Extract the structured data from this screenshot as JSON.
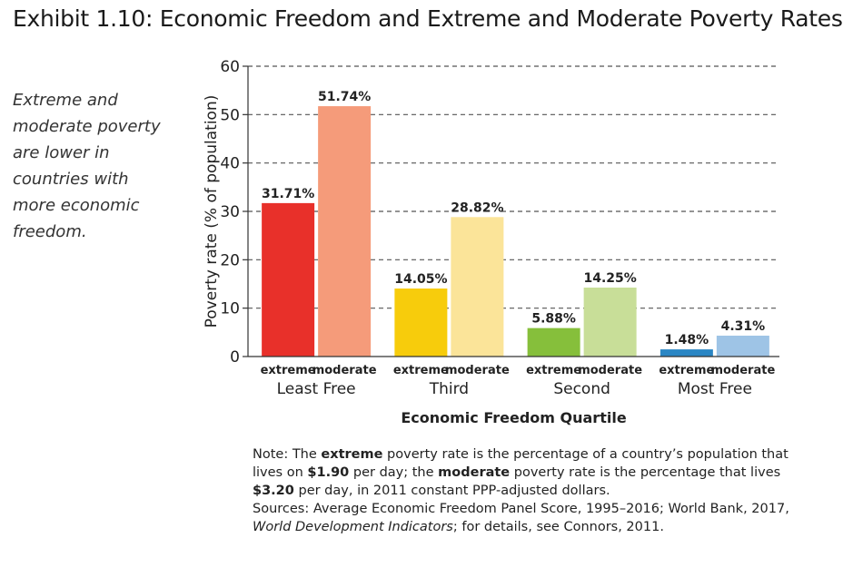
{
  "title": "Exhibit 1.10: Economic Freedom and Extreme and Moderate Poverty Rates",
  "side_note": "Extreme and moderate poverty are lower in countries with more economic freedom.",
  "note": {
    "p1": "Note: The ",
    "b1": "extreme",
    "p2": " poverty rate is the percentage of a country’s population that lives on ",
    "b2": "$1.90",
    "p3": " per day; the ",
    "b3": "moderate",
    "p4": " poverty rate is the percentage that lives ",
    "b4": "$3.20",
    "p5": " per day, in 2011 constant PPP-adjusted dollars.",
    "sources": "Sources: Average Economic Freedom Panel Score, 1995–2016; World Bank, 2017,",
    "sources_italic": "World Development Indicators",
    "sources_end": "; for details, see Connors, 2011."
  },
  "chart_data": {
    "type": "bar",
    "xlabel": "Economic Freedom Quartile",
    "ylabel": "Poverty rate (% of population)",
    "ylim": [
      0,
      60
    ],
    "yticks": [
      0,
      10,
      20,
      30,
      40,
      50,
      60
    ],
    "grid": "dashed horizontal",
    "categories": [
      "Least Free",
      "Third",
      "Second",
      "Most Free"
    ],
    "sub_labels": [
      "extreme",
      "moderate"
    ],
    "groups": [
      {
        "category": "Least Free",
        "extreme": 31.71,
        "moderate": 51.74,
        "extreme_label": "31.71%",
        "moderate_label": "51.74%",
        "extreme_color": "#e8302a",
        "moderate_color": "#f59b7a"
      },
      {
        "category": "Third",
        "extreme": 14.05,
        "moderate": 28.82,
        "extreme_label": "14.05%",
        "moderate_label": "28.82%",
        "extreme_color": "#f7cc0c",
        "moderate_color": "#fbe499"
      },
      {
        "category": "Second",
        "extreme": 5.88,
        "moderate": 14.25,
        "extreme_label": "5.88%",
        "moderate_label": "14.25%",
        "extreme_color": "#86bf3b",
        "moderate_color": "#c8de98"
      },
      {
        "category": "Most Free",
        "extreme": 1.48,
        "moderate": 4.31,
        "extreme_label": "1.48%",
        "moderate_label": "4.31%",
        "extreme_color": "#2a86c4",
        "moderate_color": "#9ec4e6"
      }
    ]
  }
}
